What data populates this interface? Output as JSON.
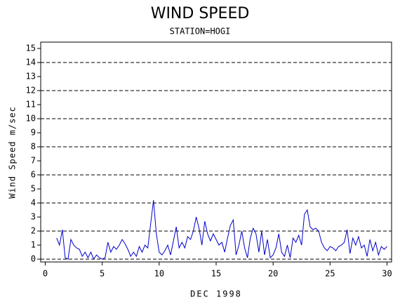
{
  "chart_data": {
    "type": "line",
    "title": "WIND SPEED",
    "subtitle": "STATION=HOGI",
    "x_label": "DEC 1998",
    "y_label": "Wind Speed m/sec",
    "xlim": [
      -0.4,
      30.4
    ],
    "ylim": [
      -0.2,
      15.45
    ],
    "xticks": [
      0,
      5,
      10,
      15,
      20,
      25,
      30
    ],
    "yticks": [
      0,
      1,
      2,
      3,
      4,
      5,
      6,
      7,
      8,
      9,
      10,
      11,
      12,
      13,
      14,
      15
    ],
    "ygrid": [
      0,
      2,
      4,
      6,
      8,
      10,
      12,
      14
    ],
    "x": [
      1,
      1.25,
      1.5,
      1.75,
      2,
      2.25,
      2.5,
      2.75,
      3,
      3.25,
      3.5,
      3.75,
      4,
      4.25,
      4.5,
      4.75,
      5,
      5.25,
      5.5,
      5.75,
      6,
      6.25,
      6.5,
      6.75,
      7,
      7.25,
      7.5,
      7.75,
      8,
      8.25,
      8.5,
      8.75,
      9,
      9.25,
      9.5,
      9.75,
      10,
      10.25,
      10.5,
      10.75,
      11,
      11.25,
      11.5,
      11.75,
      12,
      12.25,
      12.5,
      12.75,
      13,
      13.25,
      13.5,
      13.75,
      14,
      14.25,
      14.5,
      14.75,
      15,
      15.25,
      15.5,
      15.75,
      16,
      16.25,
      16.5,
      16.75,
      17,
      17.25,
      17.5,
      17.75,
      18,
      18.25,
      18.5,
      18.75,
      19,
      19.25,
      19.5,
      19.75,
      20,
      20.25,
      20.5,
      20.75,
      21,
      21.25,
      21.5,
      21.75,
      22,
      22.25,
      22.5,
      22.75,
      23,
      23.25,
      23.5,
      23.75,
      24,
      24.25,
      24.5,
      24.75,
      25,
      25.25,
      25.5,
      25.75,
      26,
      26.25,
      26.5,
      26.75,
      27,
      27.25,
      27.5,
      27.75,
      28,
      28.25,
      28.5,
      28.75,
      29,
      29.25,
      29.5,
      29.75,
      30
    ],
    "series": [
      {
        "name": "Wind Speed",
        "color": "#0000cc",
        "values": [
          1.5,
          1.0,
          2.1,
          0.1,
          0.0,
          1.4,
          1.0,
          0.8,
          0.7,
          0.2,
          0.5,
          0.1,
          0.5,
          0.0,
          0.3,
          0.1,
          0.0,
          0.1,
          1.2,
          0.5,
          0.9,
          0.7,
          1.0,
          1.4,
          1.1,
          0.7,
          0.2,
          0.5,
          0.2,
          0.9,
          0.5,
          1.0,
          0.8,
          2.5,
          4.2,
          1.8,
          0.5,
          0.3,
          0.6,
          1.0,
          0.3,
          1.3,
          2.3,
          0.8,
          1.2,
          0.8,
          1.6,
          1.4,
          2.0,
          3.0,
          2.2,
          1.0,
          2.7,
          1.8,
          1.3,
          1.8,
          1.4,
          1.0,
          1.2,
          0.5,
          1.5,
          2.4,
          2.8,
          0.3,
          1.0,
          2.0,
          0.8,
          0.1,
          1.5,
          2.2,
          1.8,
          0.5,
          2.0,
          0.3,
          1.4,
          0.1,
          0.3,
          0.8,
          1.8,
          0.5,
          0.2,
          1.0,
          0.1,
          1.5,
          1.2,
          1.7,
          1.0,
          3.2,
          3.5,
          2.3,
          2.1,
          2.2,
          2.0,
          1.2,
          0.8,
          0.6,
          0.9,
          0.8,
          0.6,
          0.9,
          1.0,
          1.2,
          2.1,
          0.4,
          1.5,
          1.0,
          1.6,
          0.8,
          1.0,
          0.2,
          1.4,
          0.6,
          1.2,
          0.3,
          0.9,
          0.7,
          0.9
        ]
      }
    ]
  }
}
